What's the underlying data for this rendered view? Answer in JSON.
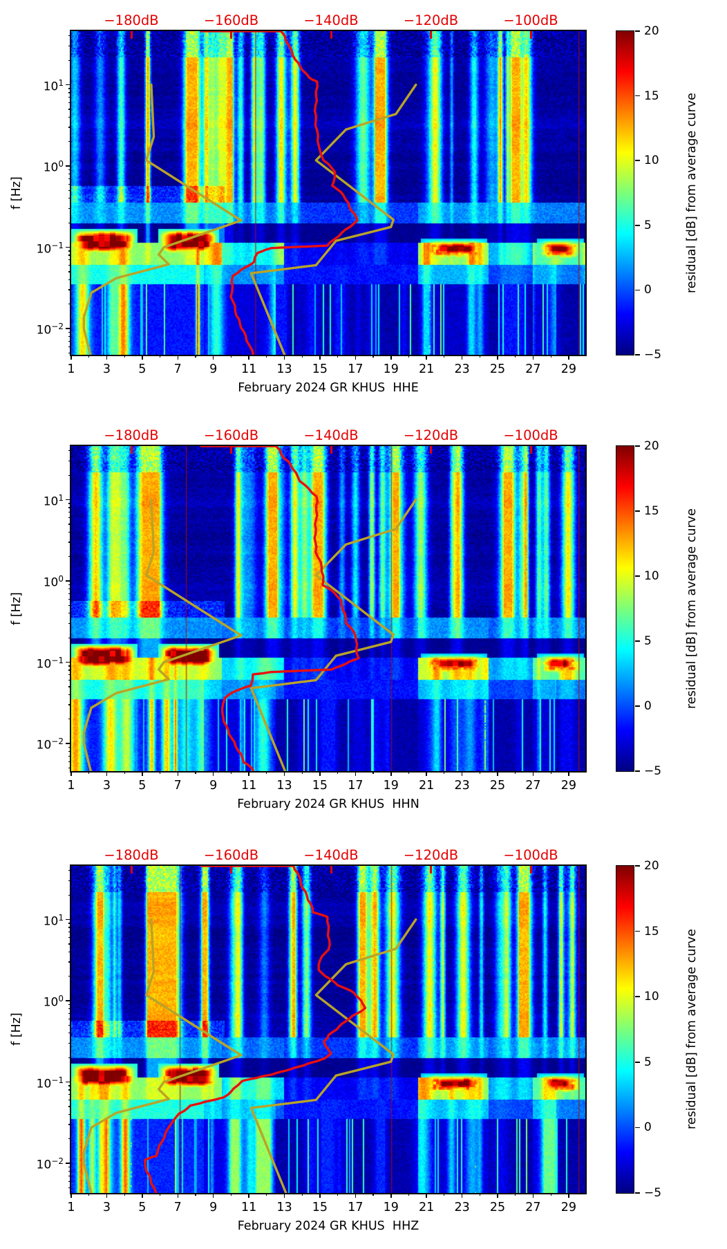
{
  "figure": {
    "month": "February 2024",
    "network": "GR",
    "station": "KHUS",
    "channels": [
      "HHE",
      "HHN",
      "HHZ"
    ]
  },
  "chart_data": {
    "type": "heatmap",
    "colormap": "jet",
    "description": "Spectrograms of seismic noise residual [dB] from average curve vs day of February 2024 and frequency, with station PSD curve (red) and noise model curves (yellow) plotted against the top dB axis",
    "x_axis": {
      "major_tick_labels": [
        "1",
        "3",
        "5",
        "7",
        "9",
        "11",
        "13",
        "15",
        "17",
        "19",
        "21",
        "23",
        "25",
        "27",
        "29"
      ],
      "major_ticks_days": [
        1,
        3,
        5,
        7,
        9,
        11,
        13,
        15,
        17,
        19,
        21,
        23,
        25,
        27,
        29
      ],
      "minor_ticks_days": [
        2,
        4,
        6,
        8,
        10,
        12,
        14,
        16,
        18,
        20,
        22,
        24,
        26,
        28
      ],
      "range_days": [
        1,
        29.94
      ]
    },
    "y_axis": {
      "label": "f [Hz]",
      "scale": "log",
      "tick_exponents": [
        1,
        0,
        -1,
        -2
      ],
      "range_log10_hz": [
        -2.37,
        1.66
      ]
    },
    "top_axis": {
      "color": "#e30000",
      "ticks_db": [
        -180,
        -160,
        -140,
        -120,
        -100
      ],
      "labels": [
        "−180dB",
        "−160dB",
        "−140dB",
        "−120dB",
        "−100dB"
      ]
    },
    "colorbar": {
      "label": "residual [dB] from average curve",
      "vmin": -5,
      "vmax": 20,
      "ticks": [
        20,
        15,
        10,
        5,
        0,
        -5
      ]
    },
    "noise_model_low_db_logf": [
      [
        -176,
        1.0
      ],
      [
        -175.5,
        0.36
      ],
      [
        -177,
        0.07
      ],
      [
        -158,
        -0.67
      ],
      [
        -173.5,
        -1.0
      ],
      [
        -174.5,
        -1.09
      ],
      [
        -172.5,
        -1.21
      ],
      [
        -183,
        -1.38
      ],
      [
        -188,
        -1.56
      ],
      [
        -189.5,
        -1.86
      ],
      [
        -189.5,
        -2.0
      ],
      [
        -188,
        -2.37
      ]
    ],
    "noise_model_high_db_logf": [
      [
        -123,
        1.0
      ],
      [
        -127,
        0.64
      ],
      [
        -137,
        0.45
      ],
      [
        -143,
        0.07
      ],
      [
        -127.5,
        -0.66
      ],
      [
        -128,
        -0.75
      ],
      [
        -139,
        -0.92
      ],
      [
        -143,
        -1.22
      ],
      [
        -156,
        -1.32
      ],
      [
        -149,
        -2.37
      ]
    ],
    "panels": [
      {
        "channel": "HHE",
        "title": "February 2024 GR KHUS  HHE",
        "seed": 7,
        "red_vlines_days": [
          11.35,
          29.55
        ],
        "psd_curve_db_logf": [
          [
            -166,
            1.66
          ],
          [
            -150,
            1.66
          ],
          [
            -149,
            1.54
          ],
          [
            -147,
            1.31
          ],
          [
            -144.5,
            1.09
          ],
          [
            -143,
            1.04
          ],
          [
            -143,
            0.62
          ],
          [
            -142.5,
            0.19
          ],
          [
            -141.5,
            0.07
          ],
          [
            -139,
            -0.07
          ],
          [
            -139.5,
            -0.24
          ],
          [
            -137.5,
            -0.36
          ],
          [
            -136.5,
            -0.5
          ],
          [
            -134.5,
            -0.67
          ],
          [
            -141,
            -0.98
          ],
          [
            -152,
            -1.01
          ],
          [
            -155,
            -1.07
          ],
          [
            -155.5,
            -1.18
          ],
          [
            -159.5,
            -1.35
          ],
          [
            -160,
            -1.61
          ],
          [
            -159,
            -1.84
          ],
          [
            -157,
            -2.09
          ],
          [
            -155.5,
            -2.33
          ]
        ]
      },
      {
        "channel": "HHN",
        "title": "February 2024 GR KHUS  HHN",
        "seed": 13,
        "red_vlines_days": [
          7.45,
          19.0,
          29.55
        ],
        "psd_curve_db_logf": [
          [
            -166,
            1.66
          ],
          [
            -151,
            1.66
          ],
          [
            -149.5,
            1.51
          ],
          [
            -148,
            1.43
          ],
          [
            -146,
            1.23
          ],
          [
            -143,
            1.04
          ],
          [
            -143,
            0.81
          ],
          [
            -143,
            0.36
          ],
          [
            -142,
            0.17
          ],
          [
            -141.5,
            -0.05
          ],
          [
            -139,
            -0.15
          ],
          [
            -138,
            -0.24
          ],
          [
            -137,
            -0.52
          ],
          [
            -135,
            -0.67
          ],
          [
            -134.5,
            -0.95
          ],
          [
            -140,
            -1.09
          ],
          [
            -152,
            -1.12
          ],
          [
            -155.5,
            -1.15
          ],
          [
            -156,
            -1.29
          ],
          [
            -159,
            -1.35
          ],
          [
            -161.5,
            -1.44
          ],
          [
            -162,
            -1.63
          ],
          [
            -161,
            -1.78
          ],
          [
            -159,
            -2.03
          ],
          [
            -157.5,
            -2.23
          ],
          [
            -155.5,
            -2.33
          ]
        ]
      },
      {
        "channel": "HHZ",
        "title": "February 2024 GR KHUS  HHZ",
        "seed": 21,
        "low_band_boost": 1.15,
        "red_vlines_days": [
          7.1,
          19.0,
          29.55
        ],
        "psd_curve_db_logf": [
          [
            -166,
            1.66
          ],
          [
            -147.5,
            1.66
          ],
          [
            -146.5,
            1.57
          ],
          [
            -146,
            1.44
          ],
          [
            -145,
            1.29
          ],
          [
            -143.5,
            1.09
          ],
          [
            -140.5,
            1.03
          ],
          [
            -140.5,
            0.63
          ],
          [
            -142,
            0.55
          ],
          [
            -142.5,
            0.38
          ],
          [
            -138.5,
            0.19
          ],
          [
            -135.5,
            0.1
          ],
          [
            -133,
            -0.09
          ],
          [
            -137,
            -0.25
          ],
          [
            -140.5,
            -0.42
          ],
          [
            -141.5,
            -0.5
          ],
          [
            -140,
            -0.65
          ],
          [
            -141,
            -0.71
          ],
          [
            -152,
            -0.91
          ],
          [
            -158,
            -0.99
          ],
          [
            -159.5,
            -1.08
          ],
          [
            -161.5,
            -1.19
          ],
          [
            -168,
            -1.29
          ],
          [
            -170.5,
            -1.39
          ],
          [
            -172,
            -1.49
          ],
          [
            -173,
            -1.62
          ],
          [
            -175,
            -1.91
          ],
          [
            -177.5,
            -1.96
          ],
          [
            -177,
            -2.1
          ],
          [
            -175.5,
            -2.3
          ],
          [
            -175,
            -2.37
          ]
        ]
      }
    ],
    "style": {
      "psd_curve_color": "#e81010",
      "noise_model_color": "#b9a427",
      "background_value": -5
    },
    "texture": {
      "dark_red_blobs_days": [
        [
          1.0,
          4.7
        ],
        [
          5.9,
          9.3
        ]
      ],
      "dark_red_blobs_logf": [
        -1.08,
        -0.78
      ],
      "hot_patches_days": [
        [
          20.7,
          24.4
        ],
        [
          27.2,
          29.9
        ]
      ],
      "hot_cores_days": [
        [
          21.4,
          23.9
        ],
        [
          27.6,
          29.3
        ]
      ],
      "hot_band_logf": [
        -1.22,
        -0.95
      ],
      "dark_band_logf": [
        -0.95,
        -0.7
      ],
      "hot_envelope": [
        [
          1,
          9.5,
          1.0
        ],
        [
          9.5,
          13,
          0.6
        ],
        [
          13,
          20.5,
          0.08
        ],
        [
          20.5,
          24.5,
          1.0
        ],
        [
          24.5,
          27,
          0.45
        ],
        [
          27,
          29.94,
          0.85
        ]
      ],
      "low_envelope": [
        [
          1,
          8.5,
          1.0
        ],
        [
          8.5,
          12.5,
          0.55
        ],
        [
          12.5,
          20.5,
          0.15
        ],
        [
          20.5,
          24.5,
          0.4
        ],
        [
          24.5,
          27,
          0.15
        ],
        [
          27,
          28.3,
          0.5
        ],
        [
          28.3,
          29.94,
          0.12
        ]
      ]
    }
  }
}
